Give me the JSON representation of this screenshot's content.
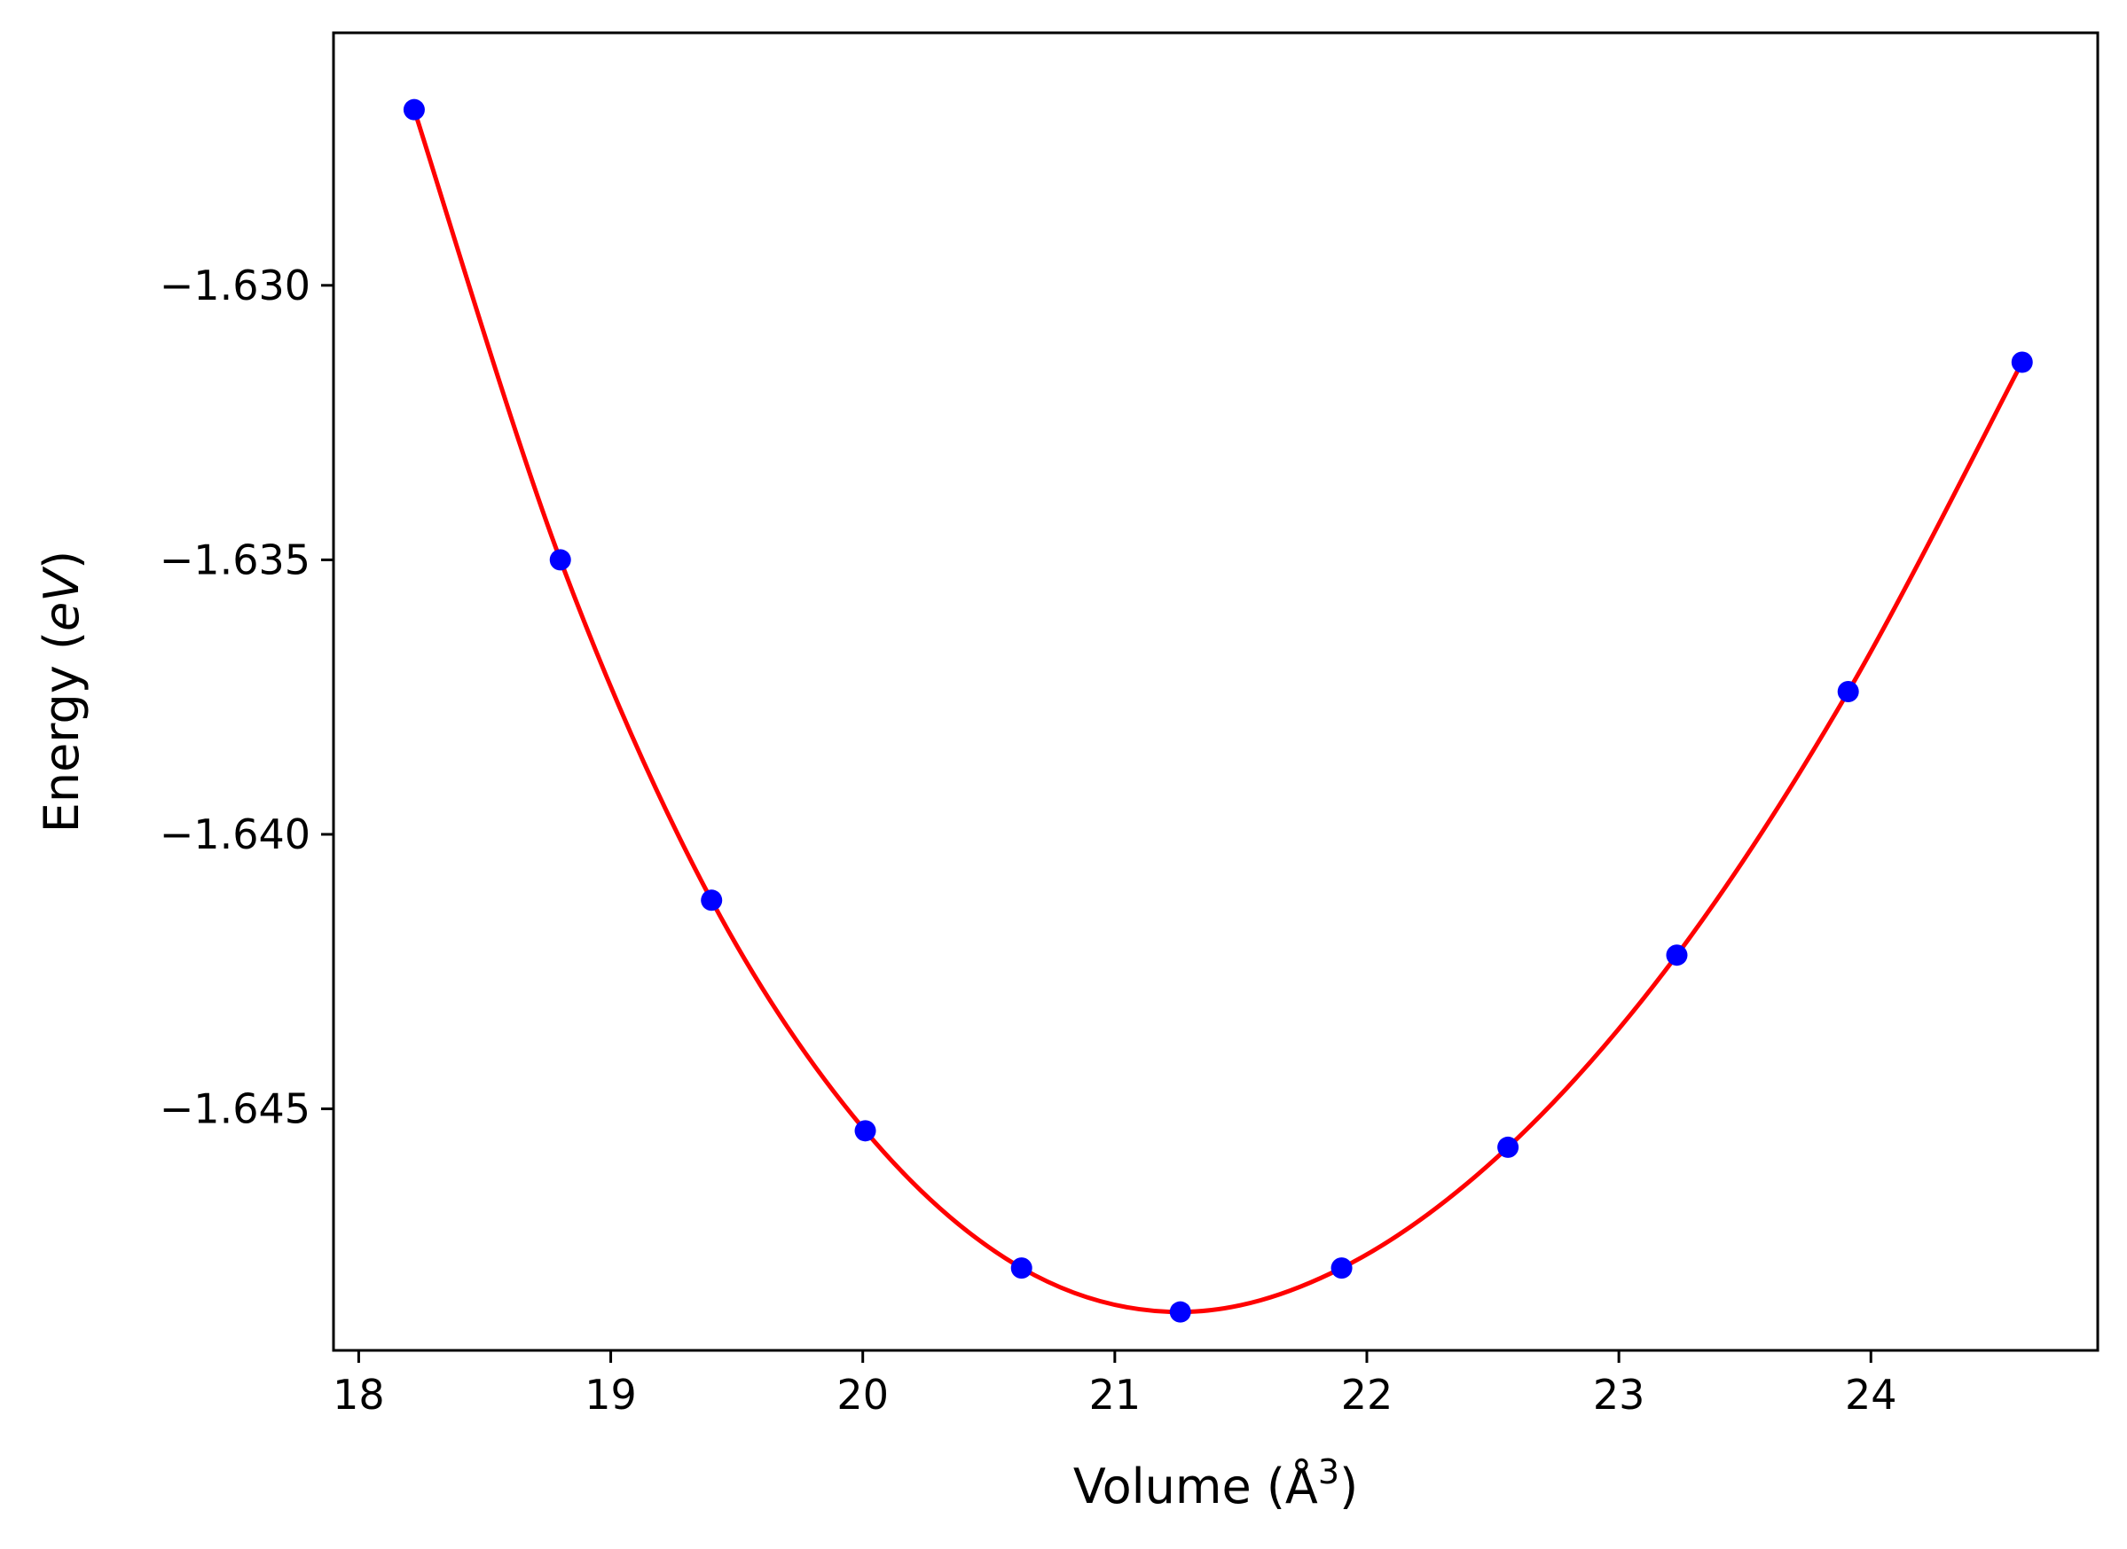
{
  "chart_data": {
    "type": "scatter",
    "title": "",
    "xlabel": "Volume (Å",
    "xlabel_superscript": "3",
    "xlabel_suffix": ")",
    "ylabel": "Energy (",
    "ylabel_italic": "eV",
    "ylabel_suffix": ")",
    "xlim": [
      17.9,
      24.9
    ],
    "ylim": [
      -1.6494,
      -1.6254
    ],
    "x_ticks": [
      18,
      19,
      20,
      21,
      22,
      23,
      24
    ],
    "x_tick_labels": [
      "18",
      "19",
      "20",
      "21",
      "22",
      "23",
      "24"
    ],
    "y_ticks": [
      -1.63,
      -1.635,
      -1.64,
      -1.645
    ],
    "y_tick_labels": [
      "−1.630",
      "−1.635",
      "−1.640",
      "−1.645"
    ],
    "grid": false,
    "series": [
      {
        "kind": "points",
        "color": "#0000ff",
        "x": [
          18.22,
          18.8,
          19.4,
          20.01,
          20.63,
          21.26,
          21.9,
          22.56,
          23.23,
          23.91,
          24.6
        ],
        "y": [
          -1.6268,
          -1.635,
          -1.6412,
          -1.6454,
          -1.6479,
          -1.6487,
          -1.6479,
          -1.6457,
          -1.6422,
          -1.6374,
          -1.6314
        ]
      },
      {
        "kind": "fit-line",
        "color": "#ff0000",
        "x": [
          18.22,
          18.8,
          19.4,
          20.01,
          20.63,
          21.26,
          21.9,
          22.56,
          23.23,
          23.91,
          24.6
        ],
        "y": [
          -1.6268,
          -1.635,
          -1.6412,
          -1.6454,
          -1.6479,
          -1.6487,
          -1.6479,
          -1.6457,
          -1.6422,
          -1.6374,
          -1.6314
        ]
      }
    ]
  }
}
